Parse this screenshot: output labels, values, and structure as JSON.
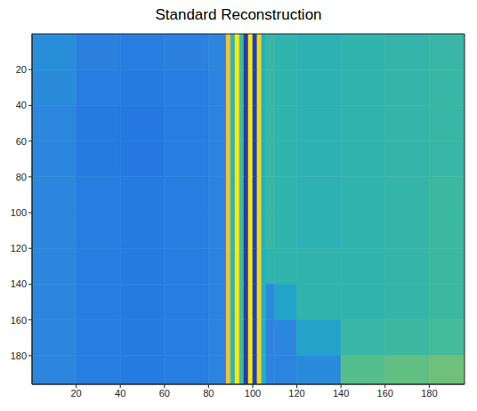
{
  "chart_data": {
    "type": "heatmap",
    "title": "Standard Reconstruction",
    "xlim": [
      0,
      196
    ],
    "ylim": [
      0,
      196
    ],
    "xticks": [
      20,
      40,
      60,
      80,
      100,
      120,
      140,
      160,
      180
    ],
    "yticks": [
      20,
      40,
      60,
      80,
      100,
      120,
      140,
      160,
      180
    ],
    "grid": false,
    "x_edges": [
      0,
      20,
      40,
      60,
      80,
      88,
      90,
      92,
      94,
      96,
      98,
      100,
      102,
      104,
      106,
      110,
      120,
      140,
      160,
      180,
      196
    ],
    "y_edges": [
      0,
      20,
      40,
      60,
      80,
      100,
      120,
      140,
      160,
      180,
      196
    ],
    "cells": [
      [
        0.34,
        0.29,
        0.28,
        0.29,
        0.31,
        0.85,
        0.5,
        0.95,
        0.55,
        0.05,
        0.95,
        0.08,
        0.9,
        0.48,
        0.52,
        0.5,
        0.49,
        0.5,
        0.51,
        0.52
      ],
      [
        0.33,
        0.28,
        0.27,
        0.28,
        0.3,
        0.85,
        0.5,
        0.95,
        0.55,
        0.05,
        0.95,
        0.08,
        0.9,
        0.48,
        0.52,
        0.5,
        0.49,
        0.5,
        0.51,
        0.52
      ],
      [
        0.32,
        0.27,
        0.26,
        0.28,
        0.3,
        0.85,
        0.5,
        0.95,
        0.55,
        0.05,
        0.95,
        0.08,
        0.9,
        0.48,
        0.52,
        0.5,
        0.49,
        0.5,
        0.51,
        0.52
      ],
      [
        0.31,
        0.27,
        0.26,
        0.28,
        0.3,
        0.85,
        0.5,
        0.95,
        0.55,
        0.05,
        0.95,
        0.08,
        0.9,
        0.48,
        0.52,
        0.5,
        0.49,
        0.5,
        0.51,
        0.52
      ],
      [
        0.31,
        0.28,
        0.27,
        0.28,
        0.3,
        0.85,
        0.5,
        0.95,
        0.55,
        0.05,
        0.95,
        0.08,
        0.9,
        0.48,
        0.52,
        0.5,
        0.49,
        0.5,
        0.51,
        0.53
      ],
      [
        0.31,
        0.28,
        0.27,
        0.28,
        0.3,
        0.85,
        0.5,
        0.95,
        0.55,
        0.05,
        0.95,
        0.08,
        0.9,
        0.48,
        0.52,
        0.5,
        0.49,
        0.5,
        0.51,
        0.53
      ],
      [
        0.31,
        0.28,
        0.27,
        0.28,
        0.3,
        0.85,
        0.5,
        0.95,
        0.55,
        0.05,
        0.95,
        0.08,
        0.9,
        0.48,
        0.5,
        0.5,
        0.5,
        0.5,
        0.51,
        0.53
      ],
      [
        0.31,
        0.28,
        0.27,
        0.28,
        0.3,
        0.85,
        0.5,
        0.95,
        0.55,
        0.05,
        0.95,
        0.08,
        0.9,
        0.48,
        0.33,
        0.42,
        0.5,
        0.5,
        0.51,
        0.53
      ],
      [
        0.31,
        0.28,
        0.27,
        0.28,
        0.3,
        0.85,
        0.5,
        0.95,
        0.55,
        0.05,
        0.95,
        0.08,
        0.9,
        0.48,
        0.3,
        0.31,
        0.42,
        0.52,
        0.53,
        0.55
      ],
      [
        0.31,
        0.28,
        0.27,
        0.28,
        0.3,
        0.85,
        0.5,
        0.95,
        0.55,
        0.05,
        0.95,
        0.08,
        0.9,
        0.48,
        0.3,
        0.3,
        0.33,
        0.58,
        0.6,
        0.62
      ]
    ]
  }
}
